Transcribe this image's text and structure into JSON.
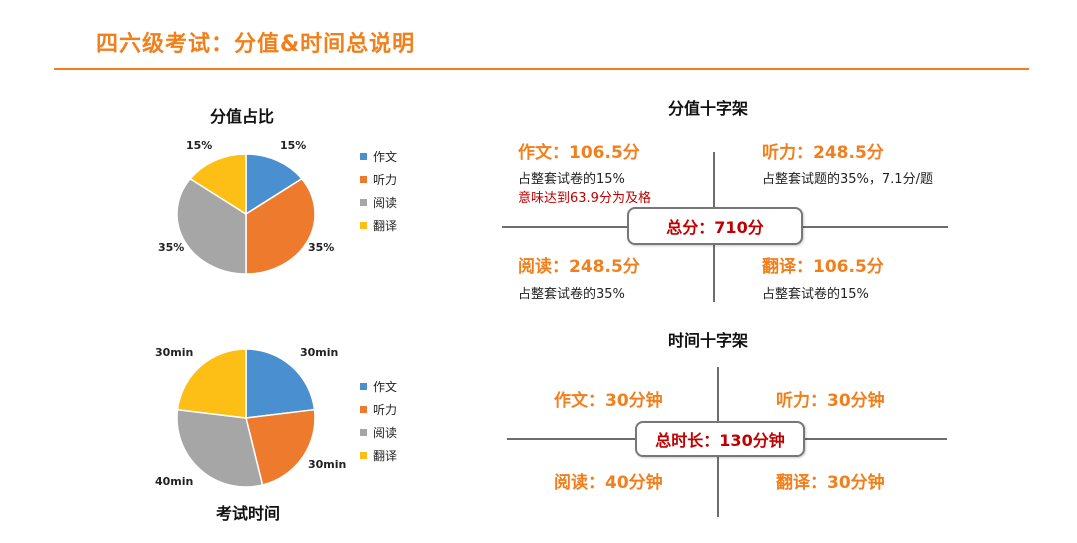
{
  "header": {
    "title": "四六级考试：分值&时间总说明"
  },
  "colors": {
    "accent": "#f07f1c",
    "emphasis": "#c00000",
    "series": [
      "#4a8fd0",
      "#ee7b2d",
      "#a6a6a6",
      "#fdbf16"
    ]
  },
  "chart_data": [
    {
      "type": "pie",
      "title": "分值占比",
      "categories": [
        "作文",
        "听力",
        "阅读",
        "翻译"
      ],
      "values": [
        15,
        35,
        35,
        15
      ],
      "data_labels": [
        "15%",
        "35%",
        "35%",
        "15%"
      ],
      "legend": "right"
    },
    {
      "type": "pie",
      "title": "考试时间",
      "categories": [
        "作文",
        "听力",
        "阅读",
        "翻译"
      ],
      "values": [
        30,
        30,
        40,
        30
      ],
      "data_labels": [
        "30min",
        "30min",
        "40min",
        "30min"
      ],
      "legend": "right"
    }
  ],
  "score_cross": {
    "title": "分值十字架",
    "total": "总分：710分",
    "writing": {
      "label": "作文：106.5分",
      "note": "占整套试卷的15%",
      "note2": "意味达到63.9分为及格"
    },
    "listening": {
      "label": "听力：248.5分",
      "note": "占整套试题的35%，7.1分/题"
    },
    "reading": {
      "label": "阅读：248.5分",
      "note": "占整套试卷的35%"
    },
    "translation": {
      "label": "翻译：106.5分",
      "note": "占整套试卷的15%"
    }
  },
  "time_cross": {
    "title": "时间十字架",
    "total": "总时长：130分钟",
    "writing": "作文：30分钟",
    "listening": "听力：30分钟",
    "reading": "阅读：40分钟",
    "translation": "翻译：30分钟"
  }
}
